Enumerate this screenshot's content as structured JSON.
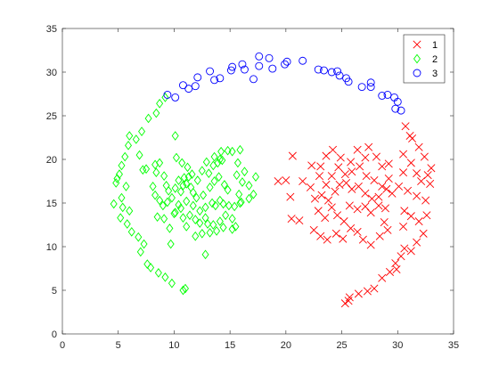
{
  "chart_data": {
    "type": "scatter",
    "xlim": [
      0,
      35
    ],
    "ylim": [
      0,
      35
    ],
    "xticks": [
      "0",
      "5",
      "10",
      "15",
      "20",
      "25",
      "30",
      "35"
    ],
    "yticks": [
      "0",
      "5",
      "10",
      "15",
      "20",
      "25",
      "30",
      "35"
    ],
    "grid": false,
    "legend_position": "top-right",
    "colors": {
      "axis": "#262626",
      "series_1": "#ff0000",
      "series_2": "#00ff00",
      "series_3": "#0000ff"
    },
    "series": [
      {
        "name": "1",
        "marker": "x",
        "color": "#ff0000",
        "points": [
          [
            20.6,
            20.4
          ],
          [
            21.5,
            17.5
          ],
          [
            22.3,
            19.3
          ],
          [
            23.1,
            19.2
          ],
          [
            23.6,
            20.4
          ],
          [
            24.2,
            21.1
          ],
          [
            24.9,
            20.2
          ],
          [
            25.8,
            19.7
          ],
          [
            26.4,
            21.1
          ],
          [
            27.1,
            20.2
          ],
          [
            27.4,
            21.4
          ],
          [
            28.1,
            20.3
          ],
          [
            28.6,
            19.2
          ],
          [
            29.2,
            19.5
          ],
          [
            23.0,
            18.1
          ],
          [
            23.6,
            17.1
          ],
          [
            24.1,
            18.1
          ],
          [
            24.7,
            19.1
          ],
          [
            25.3,
            18.3
          ],
          [
            25.9,
            18.6
          ],
          [
            26.6,
            19.2
          ],
          [
            27.2,
            18.1
          ],
          [
            27.9,
            17.6
          ],
          [
            28.6,
            16.9
          ],
          [
            29.2,
            17.8
          ],
          [
            20.0,
            17.6
          ],
          [
            19.3,
            17.5
          ],
          [
            22.2,
            16.8
          ],
          [
            22.6,
            15.5
          ],
          [
            23.2,
            15.9
          ],
          [
            23.8,
            15.3
          ],
          [
            24.4,
            16.3
          ],
          [
            24.8,
            17.1
          ],
          [
            25.4,
            17.3
          ],
          [
            25.9,
            16.6
          ],
          [
            26.5,
            16.9
          ],
          [
            27.1,
            16.1
          ],
          [
            27.7,
            15.5
          ],
          [
            28.3,
            15.7
          ],
          [
            29.0,
            16.6
          ],
          [
            29.5,
            16.1
          ],
          [
            22.9,
            14.1
          ],
          [
            23.5,
            13.3
          ],
          [
            24.1,
            14.5
          ],
          [
            24.6,
            13.6
          ],
          [
            25.2,
            12.9
          ],
          [
            25.7,
            14.7
          ],
          [
            26.4,
            14.3
          ],
          [
            27.1,
            14.6
          ],
          [
            27.6,
            13.9
          ],
          [
            28.3,
            14.7
          ],
          [
            28.8,
            12.8
          ],
          [
            20.4,
            15.7
          ],
          [
            20.5,
            13.2
          ],
          [
            21.2,
            13.0
          ],
          [
            22.5,
            11.9
          ],
          [
            23.1,
            11.2
          ],
          [
            23.7,
            10.8
          ],
          [
            24.5,
            11.5
          ],
          [
            25.1,
            10.9
          ],
          [
            25.8,
            12.1
          ],
          [
            26.4,
            11.7
          ],
          [
            26.9,
            10.8
          ],
          [
            27.6,
            10.2
          ],
          [
            28.4,
            11.2
          ],
          [
            29.1,
            11.9
          ],
          [
            30.7,
            23.8
          ],
          [
            31.1,
            22.7
          ],
          [
            31.3,
            22.4
          ],
          [
            31.9,
            21.4
          ],
          [
            32.4,
            20.3
          ],
          [
            30.5,
            20.6
          ],
          [
            31.2,
            19.6
          ],
          [
            31.7,
            18.4
          ],
          [
            32.1,
            17.5
          ],
          [
            32.7,
            18.2
          ],
          [
            33.0,
            19.0
          ],
          [
            32.9,
            17.2
          ],
          [
            30.5,
            18.5
          ],
          [
            30.1,
            16.9
          ],
          [
            30.9,
            16.4
          ],
          [
            31.7,
            15.8
          ],
          [
            32.5,
            15.3
          ],
          [
            30.6,
            14.1
          ],
          [
            31.2,
            13.5
          ],
          [
            31.9,
            12.9
          ],
          [
            32.6,
            13.6
          ],
          [
            32.3,
            11.5
          ],
          [
            31.7,
            10.5
          ],
          [
            31.2,
            9.5
          ],
          [
            30.6,
            9.8
          ],
          [
            30.3,
            8.9
          ],
          [
            29.8,
            8.1
          ],
          [
            29.3,
            7.1
          ],
          [
            28.6,
            6.4
          ],
          [
            27.9,
            5.2
          ],
          [
            27.3,
            4.9
          ],
          [
            26.5,
            4.6
          ],
          [
            25.7,
            4.2
          ],
          [
            25.6,
            3.8
          ],
          [
            25.3,
            3.5
          ],
          [
            29.9,
            7.4
          ],
          [
            30.5,
            12.3
          ],
          [
            28.9,
            14.4
          ]
        ]
      },
      {
        "name": "2",
        "marker": "diamond",
        "color": "#00ff00",
        "points": [
          [
            9.2,
            27.1
          ],
          [
            8.7,
            26.4
          ],
          [
            8.4,
            25.3
          ],
          [
            7.7,
            24.7
          ],
          [
            7.1,
            23.2
          ],
          [
            6.6,
            22.3
          ],
          [
            6.0,
            22.7
          ],
          [
            5.9,
            21.6
          ],
          [
            5.6,
            20.3
          ],
          [
            6.9,
            20.5
          ],
          [
            5.3,
            19.3
          ],
          [
            5.1,
            18.3
          ],
          [
            4.9,
            17.8
          ],
          [
            4.8,
            17.3
          ],
          [
            5.7,
            16.9
          ],
          [
            5.3,
            15.6
          ],
          [
            4.6,
            14.9
          ],
          [
            5.4,
            14.5
          ],
          [
            6.0,
            14.1
          ],
          [
            5.2,
            13.3
          ],
          [
            5.8,
            12.6
          ],
          [
            6.2,
            11.7
          ],
          [
            6.8,
            11.1
          ],
          [
            7.3,
            10.3
          ],
          [
            7.0,
            9.4
          ],
          [
            7.6,
            8.0
          ],
          [
            7.9,
            7.6
          ],
          [
            8.6,
            7.0
          ],
          [
            9.2,
            6.5
          ],
          [
            9.8,
            5.8
          ],
          [
            10.8,
            5.0
          ],
          [
            11.0,
            5.2
          ],
          [
            7.2,
            18.8
          ],
          [
            7.5,
            18.9
          ],
          [
            8.3,
            19.4
          ],
          [
            8.7,
            19.6
          ],
          [
            8.4,
            18.5
          ],
          [
            9.1,
            18.1
          ],
          [
            9.3,
            17.0
          ],
          [
            8.1,
            16.9
          ],
          [
            8.3,
            15.9
          ],
          [
            8.7,
            15.3
          ],
          [
            9.5,
            16.4
          ],
          [
            10.1,
            16.7
          ],
          [
            10.6,
            16.3
          ],
          [
            11.1,
            17.2
          ],
          [
            11.5,
            16.8
          ],
          [
            10.1,
            22.7
          ],
          [
            10.2,
            20.2
          ],
          [
            10.7,
            19.6
          ],
          [
            11.2,
            19.1
          ],
          [
            11.6,
            18.3
          ],
          [
            11.3,
            18.0
          ],
          [
            10.9,
            17.9
          ],
          [
            10.4,
            17.6
          ],
          [
            10.8,
            17.0
          ],
          [
            11.7,
            16.2
          ],
          [
            12.0,
            15.6
          ],
          [
            12.6,
            15.9
          ],
          [
            13.2,
            16.8
          ],
          [
            13.6,
            17.5
          ],
          [
            14.0,
            18.0
          ],
          [
            14.5,
            17.1
          ],
          [
            14.8,
            16.5
          ],
          [
            12.9,
            19.7
          ],
          [
            13.5,
            19.3
          ],
          [
            13.9,
            19.6
          ],
          [
            14.3,
            19.9
          ],
          [
            12.5,
            18.7
          ],
          [
            12.1,
            17.6
          ],
          [
            13.1,
            18.4
          ],
          [
            13.6,
            20.3
          ],
          [
            14.2,
            20.9
          ],
          [
            14.8,
            21.0
          ],
          [
            15.2,
            20.9
          ],
          [
            15.7,
            19.6
          ],
          [
            15.6,
            18.2
          ],
          [
            16.3,
            18.6
          ],
          [
            16.1,
            17.4
          ],
          [
            16.7,
            17.0
          ],
          [
            15.8,
            16.0
          ],
          [
            16.0,
            15.1
          ],
          [
            16.7,
            15.5
          ],
          [
            15.4,
            14.6
          ],
          [
            14.9,
            14.7
          ],
          [
            14.4,
            14.9
          ],
          [
            14.1,
            15.3
          ],
          [
            13.4,
            15.0
          ],
          [
            12.8,
            14.5
          ],
          [
            12.3,
            14.1
          ],
          [
            11.7,
            14.7
          ],
          [
            11.1,
            15.2
          ],
          [
            10.4,
            14.8
          ],
          [
            9.8,
            15.6
          ],
          [
            9.4,
            15.1
          ],
          [
            9.0,
            14.7
          ],
          [
            8.5,
            13.4
          ],
          [
            9.1,
            13.2
          ],
          [
            10.0,
            13.8
          ],
          [
            10.6,
            14.4
          ],
          [
            11.4,
            13.6
          ],
          [
            11.9,
            13.1
          ],
          [
            12.3,
            12.7
          ],
          [
            13.0,
            12.6
          ],
          [
            13.5,
            12.5
          ],
          [
            14.1,
            12.9
          ],
          [
            14.6,
            13.6
          ],
          [
            15.2,
            13.2
          ],
          [
            15.5,
            12.3
          ],
          [
            15.2,
            12.0
          ],
          [
            14.4,
            12.2
          ],
          [
            13.8,
            11.8
          ],
          [
            13.2,
            11.6
          ],
          [
            12.5,
            11.5
          ],
          [
            11.9,
            11.2
          ],
          [
            11.1,
            12.3
          ],
          [
            9.6,
            12.1
          ],
          [
            9.7,
            10.3
          ],
          [
            12.8,
            9.1
          ],
          [
            15.9,
            15.0
          ],
          [
            17.1,
            16.0
          ],
          [
            17.3,
            18.0
          ],
          [
            15.9,
            21.1
          ],
          [
            14.1,
            20.0
          ],
          [
            13.7,
            14.7
          ],
          [
            12.8,
            13.3
          ]
        ]
      },
      {
        "name": "3",
        "marker": "circle",
        "color": "#0000ff",
        "points": [
          [
            9.4,
            27.4
          ],
          [
            10.1,
            27.1
          ],
          [
            10.8,
            28.5
          ],
          [
            11.3,
            28.1
          ],
          [
            11.9,
            28.4
          ],
          [
            12.1,
            29.4
          ],
          [
            13.2,
            30.1
          ],
          [
            13.6,
            29.1
          ],
          [
            14.1,
            29.3
          ],
          [
            15.1,
            30.2
          ],
          [
            15.2,
            30.6
          ],
          [
            16.1,
            30.9
          ],
          [
            16.3,
            30.3
          ],
          [
            17.1,
            29.2
          ],
          [
            17.6,
            30.7
          ],
          [
            17.6,
            31.8
          ],
          [
            18.5,
            31.6
          ],
          [
            18.8,
            30.4
          ],
          [
            19.9,
            30.9
          ],
          [
            20.1,
            31.2
          ],
          [
            21.5,
            31.3
          ],
          [
            22.9,
            30.3
          ],
          [
            23.4,
            30.2
          ],
          [
            24.1,
            30.0
          ],
          [
            24.6,
            30.1
          ],
          [
            24.8,
            29.6
          ],
          [
            25.4,
            29.3
          ],
          [
            25.6,
            28.9
          ],
          [
            26.8,
            28.3
          ],
          [
            27.6,
            28.3
          ],
          [
            27.6,
            28.8
          ],
          [
            28.6,
            27.3
          ],
          [
            29.1,
            27.4
          ],
          [
            29.7,
            27.1
          ],
          [
            30.0,
            26.6
          ],
          [
            29.8,
            25.8
          ],
          [
            30.3,
            25.6
          ]
        ]
      },
      {
        "name": "",
        "marker": "diamond",
        "color": "#00ff00",
        "points": [
          [
            10.1,
            13.9
          ],
          [
            10.8,
            13.3
          ]
        ]
      }
    ]
  }
}
